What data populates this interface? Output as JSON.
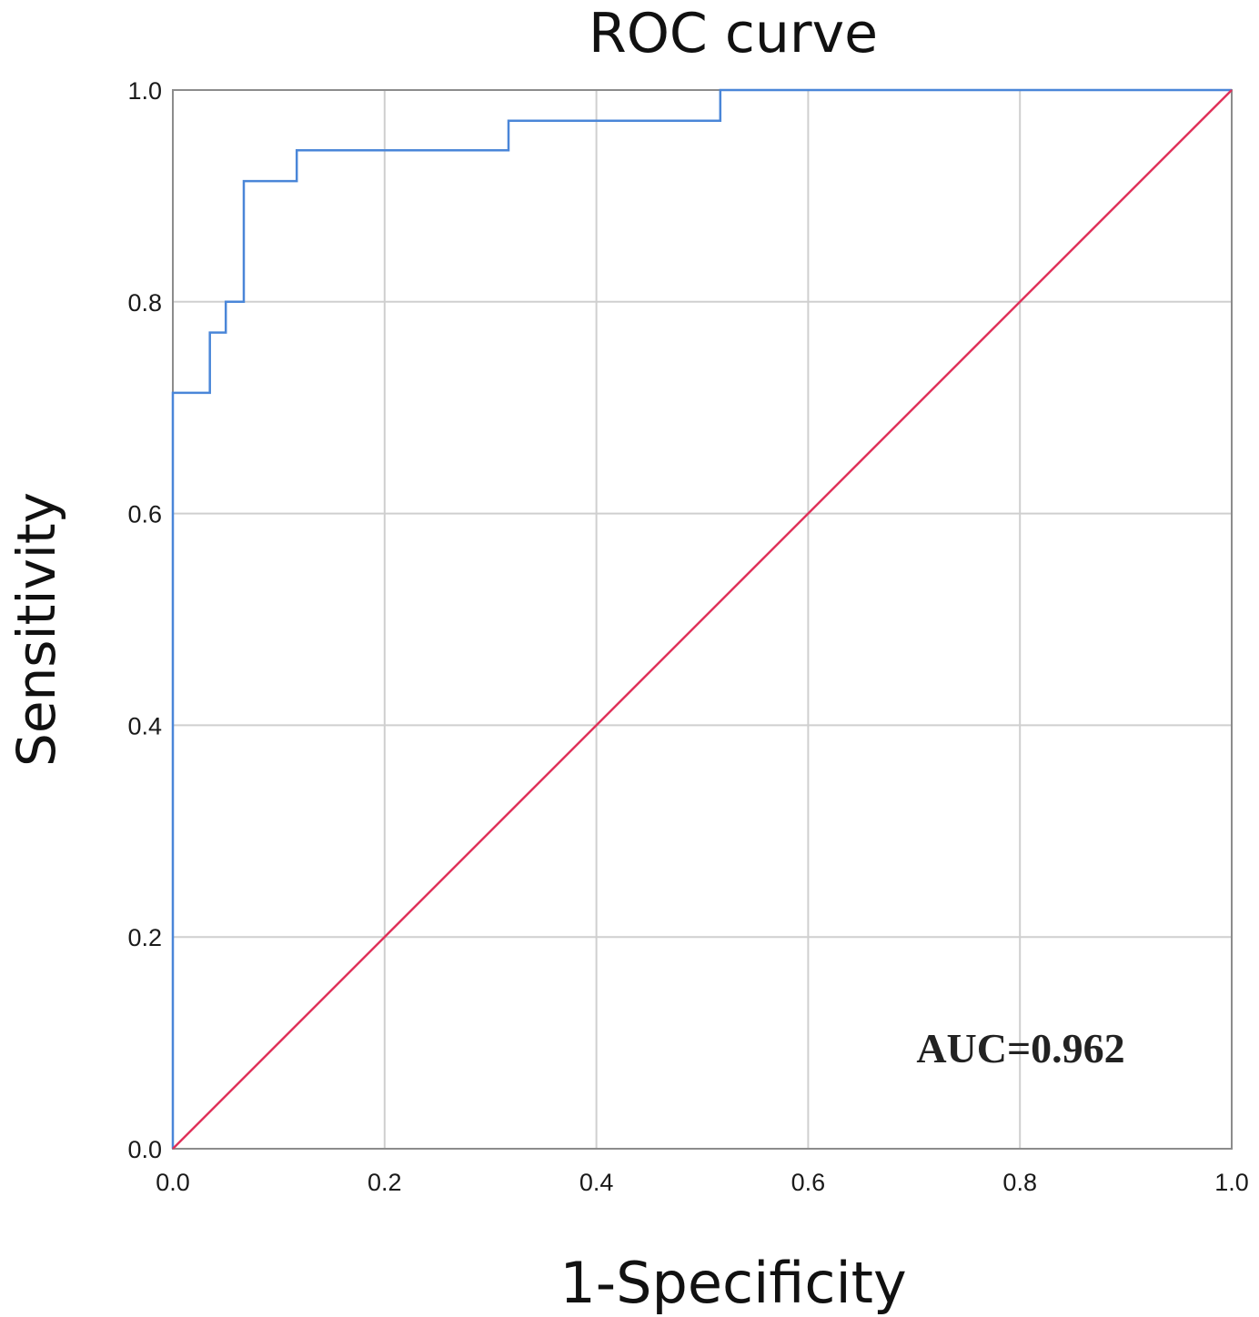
{
  "chart_data": {
    "type": "line",
    "title": "ROC curve",
    "xlabel": "1-Specificity",
    "ylabel": "Sensitivity",
    "xlim": [
      0.0,
      1.0
    ],
    "ylim": [
      0.0,
      1.0
    ],
    "grid": true,
    "x_ticks": [
      "0.0",
      "0.2",
      "0.4",
      "0.6",
      "0.8",
      "1.0"
    ],
    "y_ticks": [
      "0.0",
      "0.2",
      "0.4",
      "0.6",
      "0.8",
      "1.0"
    ],
    "annotation": "AUC=0.962",
    "annotation_position": "bottom-right",
    "series": [
      {
        "name": "ROC",
        "style": "step",
        "color": "#4a86d8",
        "x": [
          0.0,
          0.0,
          0.035,
          0.035,
          0.05,
          0.05,
          0.067,
          0.067,
          0.117,
          0.117,
          0.317,
          0.317,
          0.517,
          0.517,
          1.0
        ],
        "y": [
          0.0,
          0.714,
          0.714,
          0.771,
          0.771,
          0.8,
          0.8,
          0.914,
          0.914,
          0.943,
          0.943,
          0.971,
          0.971,
          1.0,
          1.0
        ]
      },
      {
        "name": "Reference line",
        "style": "line",
        "color": "#e0325a",
        "x": [
          0.0,
          1.0
        ],
        "y": [
          0.0,
          1.0
        ]
      }
    ]
  }
}
